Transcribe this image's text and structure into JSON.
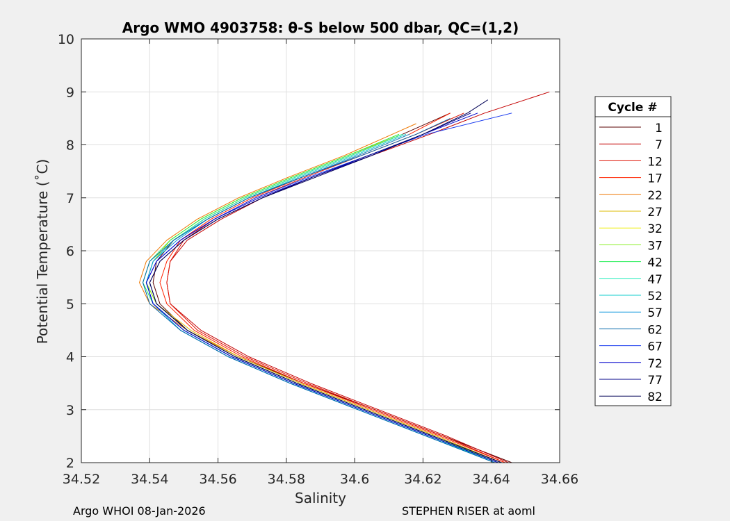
{
  "chart_data": {
    "type": "line",
    "title": "Argo WMO 4903758: θ-S below 500 dbar,  QC=(1,2)",
    "xlabel": "Salinity",
    "ylabel": "Potential Temperature (˚C)",
    "xlim": [
      34.52,
      34.66
    ],
    "ylim": [
      2,
      10
    ],
    "xticks": [
      "34.52",
      "34.54",
      "34.56",
      "34.58",
      "34.6",
      "34.62",
      "34.64",
      "34.66"
    ],
    "xtick_values": [
      34.52,
      34.54,
      34.56,
      34.58,
      34.6,
      34.62,
      34.64,
      34.66
    ],
    "yticks": [
      "2",
      "3",
      "4",
      "5",
      "6",
      "7",
      "8",
      "9",
      "10"
    ],
    "ytick_values": [
      2,
      3,
      4,
      5,
      6,
      7,
      8,
      9,
      10
    ],
    "grid": true,
    "legend_title": "Cycle #",
    "legend_position": "right-outside",
    "series": [
      {
        "name": "1",
        "color": "#5a0000",
        "theta": [
          2.0,
          2.5,
          3.0,
          3.5,
          4.0,
          4.5,
          5.0,
          5.4,
          5.8,
          6.2,
          6.6,
          7.0,
          7.4,
          7.8,
          8.2,
          8.6
        ],
        "salinity": [
          34.646,
          34.626,
          34.606,
          34.585,
          34.566,
          34.551,
          34.543,
          34.541,
          34.542,
          34.547,
          34.556,
          34.568,
          34.583,
          34.599,
          34.614,
          34.628
        ]
      },
      {
        "name": "7",
        "color": "#c40000",
        "theta": [
          2.0,
          2.5,
          3.0,
          3.5,
          4.0,
          4.5,
          5.0,
          5.4,
          5.8,
          6.2,
          6.6,
          7.0,
          7.4,
          7.8,
          8.2,
          8.6,
          9.0
        ],
        "salinity": [
          34.645,
          34.627,
          34.607,
          34.587,
          34.569,
          34.555,
          34.546,
          34.545,
          34.546,
          34.551,
          34.561,
          34.573,
          34.588,
          34.605,
          34.622,
          34.638,
          34.657
        ]
      },
      {
        "name": "12",
        "color": "#dd1100",
        "theta": [
          2.0,
          2.5,
          3.0,
          3.5,
          4.0,
          4.5,
          5.0,
          5.4,
          5.8,
          6.2,
          6.6,
          7.0,
          7.4,
          7.8,
          8.2,
          8.6
        ],
        "salinity": [
          34.644,
          34.626,
          34.606,
          34.586,
          34.568,
          34.554,
          34.546,
          34.545,
          34.546,
          34.55,
          34.559,
          34.571,
          34.586,
          34.602,
          34.618,
          34.632
        ]
      },
      {
        "name": "17",
        "color": "#ff2200",
        "theta": [
          2.0,
          2.5,
          3.0,
          3.5,
          4.0,
          4.5,
          5.0,
          5.4,
          5.8,
          6.2,
          6.6,
          7.0,
          7.4,
          7.8,
          8.2,
          8.6
        ],
        "salinity": [
          34.644,
          34.625,
          34.605,
          34.585,
          34.567,
          34.553,
          34.545,
          34.543,
          34.545,
          34.549,
          34.558,
          34.57,
          34.585,
          34.601,
          34.616,
          34.628
        ]
      },
      {
        "name": "22",
        "color": "#ee7700",
        "theta": [
          2.0,
          2.5,
          3.0,
          3.5,
          4.0,
          4.5,
          5.0,
          5.4,
          5.8,
          6.2,
          6.6,
          7.0,
          7.4,
          7.8,
          8.2,
          8.4
        ],
        "salinity": [
          34.643,
          34.624,
          34.604,
          34.584,
          34.566,
          34.551,
          34.54,
          34.537,
          34.539,
          34.545,
          34.554,
          34.566,
          34.581,
          34.597,
          34.611,
          34.618
        ]
      },
      {
        "name": "27",
        "color": "#ddbb00",
        "theta": [
          2.0,
          2.5,
          3.0,
          3.5,
          4.0,
          4.5,
          5.0,
          5.4,
          5.8,
          6.2,
          6.6,
          7.0,
          7.4,
          7.8,
          8.2
        ],
        "salinity": [
          34.643,
          34.624,
          34.604,
          34.584,
          34.566,
          34.552,
          34.542,
          34.539,
          34.541,
          34.546,
          34.555,
          34.567,
          34.582,
          34.598,
          34.614
        ]
      },
      {
        "name": "32",
        "color": "#eeee00",
        "theta": [
          2.0,
          2.5,
          3.0,
          3.5,
          4.0,
          4.5,
          5.0,
          5.4,
          5.8,
          6.2,
          6.6,
          7.0,
          7.4,
          7.8,
          8.2
        ],
        "salinity": [
          34.642,
          34.623,
          34.603,
          34.583,
          34.565,
          34.551,
          34.542,
          34.539,
          34.541,
          34.546,
          34.555,
          34.567,
          34.582,
          34.598,
          34.613
        ]
      },
      {
        "name": "37",
        "color": "#88ee22",
        "theta": [
          2.0,
          2.5,
          3.0,
          3.5,
          4.0,
          4.5,
          5.0,
          5.4,
          5.8,
          6.2,
          6.6,
          7.0,
          7.4,
          7.8,
          8.2
        ],
        "salinity": [
          34.642,
          34.623,
          34.603,
          34.583,
          34.565,
          34.551,
          34.542,
          34.539,
          34.541,
          34.547,
          34.556,
          34.568,
          34.583,
          34.599,
          34.614
        ]
      },
      {
        "name": "42",
        "color": "#22ee55",
        "theta": [
          2.0,
          2.5,
          3.0,
          3.5,
          4.0,
          4.5,
          5.0,
          5.4,
          5.8,
          6.2,
          6.6,
          7.0,
          7.4,
          7.8,
          8.2
        ],
        "salinity": [
          34.642,
          34.622,
          34.602,
          34.582,
          34.564,
          34.55,
          34.541,
          34.538,
          34.54,
          34.546,
          34.555,
          34.567,
          34.582,
          34.598,
          34.613
        ]
      },
      {
        "name": "47",
        "color": "#22eebb",
        "theta": [
          2.0,
          2.5,
          3.0,
          3.5,
          4.0,
          4.5,
          5.0,
          5.4,
          5.8,
          6.2,
          6.6,
          7.0,
          7.4,
          7.8,
          8.2
        ],
        "salinity": [
          34.641,
          34.622,
          34.602,
          34.582,
          34.564,
          34.55,
          34.541,
          34.539,
          34.541,
          34.547,
          34.556,
          34.568,
          34.583,
          34.599,
          34.614
        ]
      },
      {
        "name": "52",
        "color": "#11cccc",
        "theta": [
          2.0,
          2.5,
          3.0,
          3.5,
          4.0,
          4.5,
          5.0,
          5.4,
          5.8,
          6.2,
          6.6,
          7.0,
          7.4,
          7.8,
          8.2
        ],
        "salinity": [
          34.641,
          34.621,
          34.601,
          34.581,
          34.563,
          34.549,
          34.541,
          34.539,
          34.541,
          34.547,
          34.557,
          34.569,
          34.584,
          34.6,
          34.615
        ]
      },
      {
        "name": "57",
        "color": "#1199dd",
        "theta": [
          2.0,
          2.5,
          3.0,
          3.5,
          4.0,
          4.5,
          5.0,
          5.4,
          5.8,
          6.2,
          6.6,
          7.0,
          7.4,
          7.8,
          8.2
        ],
        "salinity": [
          34.641,
          34.621,
          34.601,
          34.581,
          34.563,
          34.549,
          34.541,
          34.539,
          34.541,
          34.548,
          34.557,
          34.569,
          34.585,
          34.601,
          34.616
        ]
      },
      {
        "name": "62",
        "color": "#0066aa",
        "theta": [
          2.0,
          2.5,
          3.0,
          3.5,
          4.0,
          4.5,
          5.0,
          5.4,
          5.8,
          6.2,
          6.6,
          7.0,
          7.4,
          7.8,
          8.2,
          8.5
        ],
        "salinity": [
          34.641,
          34.621,
          34.601,
          34.581,
          34.563,
          34.549,
          34.54,
          34.538,
          34.54,
          34.547,
          34.557,
          34.569,
          34.585,
          34.602,
          34.618,
          34.628
        ]
      },
      {
        "name": "67",
        "color": "#1133ee",
        "theta": [
          2.0,
          2.5,
          3.0,
          3.5,
          4.0,
          4.5,
          5.0,
          5.4,
          5.8,
          6.2,
          6.6,
          7.0,
          7.4,
          7.8,
          8.2,
          8.6
        ],
        "salinity": [
          34.642,
          34.622,
          34.602,
          34.582,
          34.564,
          34.55,
          34.541,
          34.539,
          34.542,
          34.549,
          34.559,
          34.571,
          34.587,
          34.604,
          34.621,
          34.646
        ]
      },
      {
        "name": "72",
        "color": "#0000cc",
        "theta": [
          2.0,
          2.5,
          3.0,
          3.5,
          4.0,
          4.5,
          5.0,
          5.4,
          5.8,
          6.2,
          6.6,
          7.0,
          7.4,
          7.8,
          8.2,
          8.6
        ],
        "salinity": [
          34.642,
          34.622,
          34.602,
          34.582,
          34.564,
          34.55,
          34.541,
          34.539,
          34.542,
          34.549,
          34.559,
          34.572,
          34.588,
          34.605,
          34.62,
          34.636
        ]
      },
      {
        "name": "77",
        "color": "#000088",
        "theta": [
          2.0,
          2.5,
          3.0,
          3.5,
          4.0,
          4.5,
          5.0,
          5.4,
          5.8,
          6.2,
          6.6,
          7.0,
          7.4,
          7.8,
          8.2,
          8.6
        ],
        "salinity": [
          34.643,
          34.623,
          34.603,
          34.583,
          34.565,
          34.551,
          34.542,
          34.54,
          34.543,
          34.55,
          34.56,
          34.573,
          34.588,
          34.604,
          34.62,
          34.634
        ]
      },
      {
        "name": "82",
        "color": "#000055",
        "theta": [
          2.0,
          2.5,
          3.0,
          3.5,
          4.0,
          4.5,
          5.0,
          5.4,
          5.8,
          6.2,
          6.6,
          7.0,
          7.4,
          7.8,
          8.2,
          8.6,
          8.85
        ],
        "salinity": [
          34.643,
          34.623,
          34.603,
          34.583,
          34.565,
          34.551,
          34.542,
          34.54,
          34.543,
          34.55,
          34.56,
          34.573,
          34.589,
          34.605,
          34.62,
          34.633,
          34.639
        ]
      }
    ]
  },
  "footer": {
    "left": "Argo WHOI 08-Jan-2026",
    "right": "STEPHEN RISER at aoml"
  }
}
